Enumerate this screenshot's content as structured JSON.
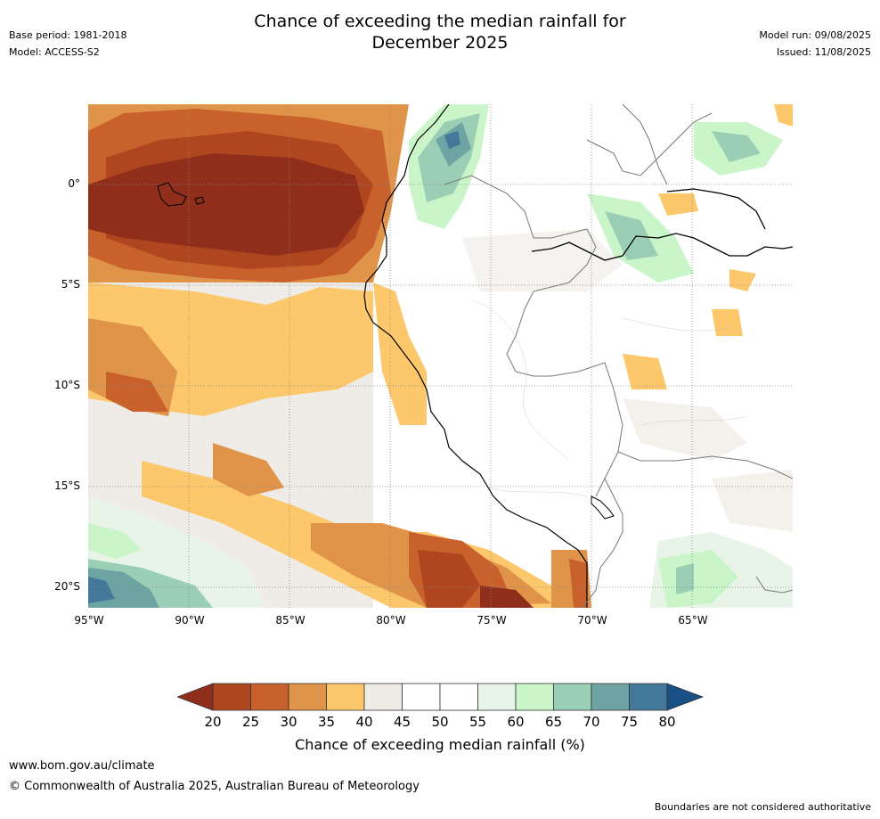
{
  "header": {
    "title_line1": "Chance of exceeding the median rainfall for",
    "title_line2": "December 2025",
    "base_period": "Base period: 1981-2018",
    "model": "Model: ACCESS-S2",
    "model_run": "Model run: 09/08/2025",
    "issued": "Issued: 11/08/2025"
  },
  "map": {
    "lat_labels": [
      "0°",
      "5°S",
      "10°S",
      "15°S",
      "20°S"
    ],
    "lon_labels": [
      "95°W",
      "90°W",
      "85°W",
      "80°W",
      "75°W",
      "70°W",
      "65°W"
    ]
  },
  "colorbar": {
    "ticks": [
      "20",
      "25",
      "30",
      "35",
      "40",
      "45",
      "50",
      "55",
      "60",
      "65",
      "70",
      "75",
      "80"
    ],
    "colors": [
      "#8f2f1b",
      "#b0461f",
      "#c8612c",
      "#e0944a",
      "#fcc86b",
      "#efebe6",
      "#ffffff",
      "#ffffff",
      "#e8f4e8",
      "#c9f5c9",
      "#9bcfb5",
      "#6ea3a3",
      "#44789a",
      "#1a4f86"
    ],
    "label": "Chance of exceeding median rainfall (%)"
  },
  "footer": {
    "url": "www.bom.gov.au/climate",
    "copyright": "© Commonwealth of Australia 2025, Australian Bureau of Meteorology",
    "disclaimer": "Boundaries are not considered authoritative"
  }
}
